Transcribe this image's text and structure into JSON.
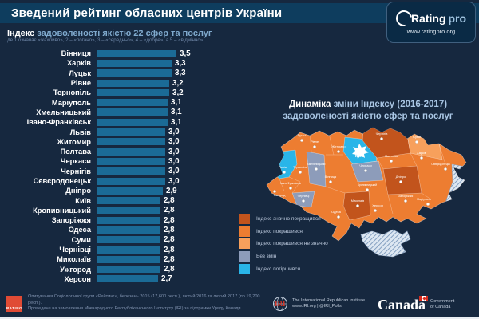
{
  "header": {
    "title": "Зведений рейтинг обласних центрів України",
    "logo": {
      "brand_rating": "Rating",
      "brand_pro": "pro",
      "url": "www.ratingpro.org"
    }
  },
  "chart": {
    "heading_bold": "Індекс",
    "heading_rest": " задоволеності якістю 22 сфер та послуг",
    "scale_note": "де 1 означає «жахливо», 2 – «погано», 3 – «середньо», 4 – «добре», а 5 – «відмінно»"
  },
  "chart_data": {
    "type": "bar",
    "orientation": "horizontal",
    "title": "Індекс задоволеності якістю 22 сфер та послуг",
    "categories": [
      "Вінниця",
      "Харків",
      "Луцьк",
      "Рівне",
      "Тернопіль",
      "Маріуполь",
      "Хмельницький",
      "Івано-Франківськ",
      "Львів",
      "Житомир",
      "Полтава",
      "Черкаси",
      "Чернігів",
      "Сєвєродонецьк",
      "Дніпро",
      "Київ",
      "Кропивницький",
      "Запоріжжя",
      "Одеса",
      "Суми",
      "Чернівці",
      "Миколаїв",
      "Ужгород",
      "Херсон"
    ],
    "values": [
      3.5,
      3.3,
      3.3,
      3.2,
      3.2,
      3.1,
      3.1,
      3.1,
      3.0,
      3.0,
      3.0,
      3.0,
      3.0,
      3.0,
      2.9,
      2.8,
      2.8,
      2.8,
      2.8,
      2.8,
      2.8,
      2.8,
      2.8,
      2.7
    ],
    "value_labels": [
      "3,5",
      "3,3",
      "3,3",
      "3,2",
      "3,2",
      "3,1",
      "3,1",
      "3,1",
      "3,0",
      "3,0",
      "3,0",
      "3,0",
      "3,0",
      "3,0",
      "2,9",
      "2,8",
      "2,8",
      "2,8",
      "2,8",
      "2,8",
      "2,8",
      "2,8",
      "2,8",
      "2,7"
    ],
    "xlim": [
      0,
      3.5
    ],
    "bar_color": "#1b6b96"
  },
  "map_panel": {
    "title_bold": "Динаміка",
    "title_rest": " зміни Індексу (2016-2017)",
    "title_line2": "задоволеності якістю сфер та послуг",
    "status_colors": {
      "significant_improve": "#c2541c",
      "improve": "#ed7d31",
      "slight_improve": "#f7a05c",
      "no_change": "#8d9cba",
      "decline": "#29b5e8"
    },
    "legend": [
      {
        "label": "Індекс значно покращився",
        "status": "significant_improve"
      },
      {
        "label": "Індекс покращився",
        "status": "improve"
      },
      {
        "label": "Індекс покращився не значно",
        "status": "slight_improve"
      },
      {
        "label": "Без змін",
        "status": "no_change"
      },
      {
        "label": "Індекс погіршився",
        "status": "decline"
      }
    ],
    "regions": [
      {
        "name": "Луцьк",
        "status": "improve"
      },
      {
        "name": "Рівне",
        "status": "improve"
      },
      {
        "name": "Житомир",
        "status": "improve"
      },
      {
        "name": "Київ",
        "status": "decline"
      },
      {
        "name": "Чернігів",
        "status": "significant_improve"
      },
      {
        "name": "Суми",
        "status": "slight_improve"
      },
      {
        "name": "Львів",
        "status": "decline"
      },
      {
        "name": "Тернопіль",
        "status": "improve"
      },
      {
        "name": "Хмельницький",
        "status": "no_change"
      },
      {
        "name": "Вінниця",
        "status": "improve"
      },
      {
        "name": "Черкаси",
        "status": "no_change"
      },
      {
        "name": "Полтава",
        "status": "improve"
      },
      {
        "name": "Харків",
        "status": "improve"
      },
      {
        "name": "Ужгород",
        "status": "improve"
      },
      {
        "name": "Івано-Франківськ",
        "status": "improve"
      },
      {
        "name": "Чернівці",
        "status": "no_change"
      },
      {
        "name": "Кропивницький",
        "status": "improve"
      },
      {
        "name": "Дніпро",
        "status": "significant_improve"
      },
      {
        "name": "Сєвєродонецьк",
        "status": "improve"
      },
      {
        "name": "Маріуполь",
        "status": "improve"
      },
      {
        "name": "Одеса",
        "status": "improve"
      },
      {
        "name": "Миколаїв",
        "status": "significant_improve"
      },
      {
        "name": "Херсон",
        "status": "improve"
      },
      {
        "name": "Запоріжжя",
        "status": "improve"
      }
    ]
  },
  "footer": {
    "rating_group_logo_text": "RATING",
    "source_line1": "Опитування Соціологічної групи «Рейтинг», березень 2015 (17,600 респ.), лютий 2016 та лютий 2017 (по 19,200 респ.).",
    "source_line2": "Проведене на замовлення Міжнародного Республіканського Інституту (IRI) за підтримки Уряду Канади",
    "iri": {
      "abbr": "IRI",
      "line1": "The International Republican Institute",
      "line2": "www.IRI.org | @IRI_Polls"
    },
    "canada": {
      "wordmark": "Canada",
      "caption1": "Government",
      "caption2": "of Canada"
    }
  }
}
